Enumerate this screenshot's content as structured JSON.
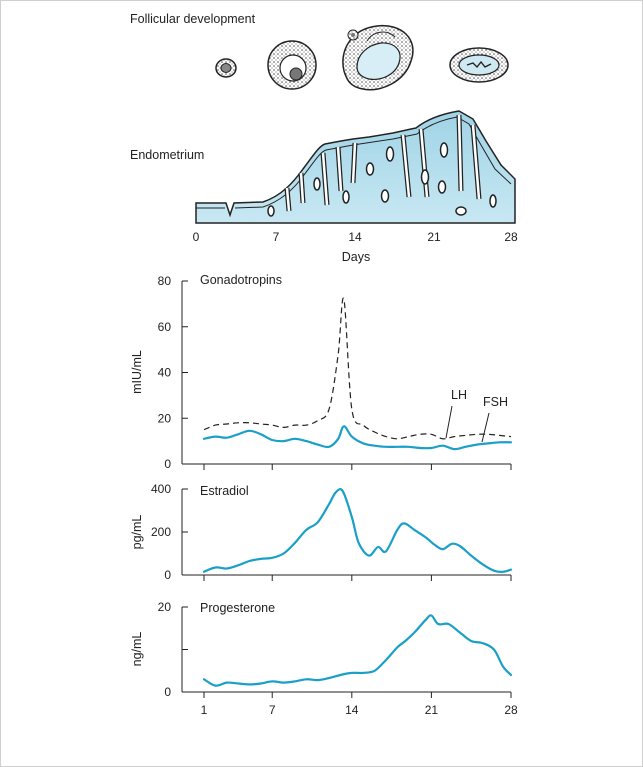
{
  "labels": {
    "follicular": "Follicular development",
    "endometrium": "Endometrium",
    "days": "Days"
  },
  "endo_axis": {
    "ticks": [
      "0",
      "7",
      "14",
      "21",
      "28"
    ]
  },
  "chart_data": [
    {
      "type": "line",
      "title": "Gonadotropins",
      "ylabel": "mIU/mL",
      "xlabel": "",
      "xlim": [
        1,
        28
      ],
      "ylim": [
        0,
        80
      ],
      "yticks": [
        "0",
        "20",
        "40",
        "60",
        "80"
      ],
      "x": [
        1,
        2,
        3,
        4,
        5,
        6,
        7,
        8,
        9,
        10,
        11,
        12,
        12.8,
        13.3,
        14,
        15,
        16,
        17,
        18,
        19,
        20,
        21,
        22,
        23,
        24,
        25,
        26,
        27,
        28
      ],
      "series": [
        {
          "name": "LH",
          "style": "dashed",
          "color": "#222222",
          "values": [
            15,
            17,
            17.5,
            18,
            18,
            17.5,
            17,
            16,
            17,
            17,
            19,
            24,
            48,
            72,
            24,
            17,
            14,
            12,
            11,
            12,
            13,
            13,
            11,
            12,
            12.5,
            13,
            13,
            12.5,
            12
          ]
        },
        {
          "name": "FSH",
          "style": "solid",
          "color": "#1aa0c8",
          "values": [
            11,
            12,
            11.5,
            13,
            14.5,
            13,
            10.5,
            10,
            11,
            10,
            8.5,
            7.5,
            11,
            16.5,
            12,
            9,
            8,
            7.5,
            7.5,
            7.5,
            7,
            7,
            8,
            6.5,
            7.5,
            8.5,
            9,
            9.5,
            9.5
          ]
        }
      ]
    },
    {
      "type": "line",
      "title": "Estradiol",
      "ylabel": "pg/mL",
      "xlabel": "",
      "xlim": [
        1,
        28
      ],
      "ylim": [
        0,
        400
      ],
      "yticks": [
        "0",
        "200",
        "400"
      ],
      "series": [
        {
          "name": "",
          "color": "#1aa0c8",
          "x": [
            1,
            2,
            3,
            4,
            5,
            6,
            7,
            8,
            9,
            10,
            11,
            12,
            12.6,
            13.2,
            14,
            14.6,
            15.5,
            16.3,
            17,
            18,
            18.6,
            19.5,
            20.5,
            21.3,
            22,
            22.8,
            23.5,
            24.5,
            25.5,
            26.5,
            27.3,
            28
          ],
          "values": [
            15,
            35,
            30,
            45,
            65,
            75,
            80,
            100,
            150,
            210,
            245,
            330,
            385,
            390,
            270,
            150,
            90,
            130,
            110,
            210,
            240,
            210,
            175,
            140,
            120,
            145,
            135,
            90,
            50,
            20,
            15,
            25
          ]
        }
      ]
    },
    {
      "type": "line",
      "title": "Progesterone",
      "ylabel": "ng/mL",
      "xlabel": "",
      "xlim": [
        1,
        28
      ],
      "ylim": [
        0,
        20
      ],
      "yticks": [
        "0",
        "",
        "20"
      ],
      "xticks": [
        "1",
        "7",
        "14",
        "21",
        "28"
      ],
      "series": [
        {
          "name": "",
          "color": "#1aa0c8",
          "x": [
            1,
            2,
            3,
            4,
            5,
            6,
            7,
            8,
            9,
            10,
            11,
            12,
            13,
            14,
            15,
            16,
            17,
            18,
            18.7,
            19.5,
            20.5,
            21,
            21.6,
            22.5,
            23.5,
            24.5,
            25.5,
            26.5,
            27.3,
            28
          ],
          "values": [
            3,
            1.5,
            2.2,
            2,
            1.8,
            2,
            2.5,
            2.2,
            2.5,
            3,
            2.8,
            3.3,
            4,
            4.5,
            4.5,
            5,
            7.5,
            10.5,
            12,
            14,
            17,
            18,
            16,
            16,
            14,
            12,
            11.5,
            10,
            6,
            4
          ]
        }
      ]
    }
  ]
}
